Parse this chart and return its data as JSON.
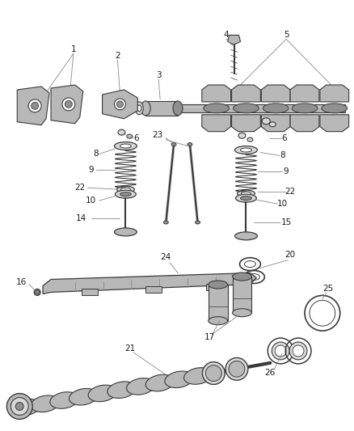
{
  "bg_color": "#ffffff",
  "line_color": "#3a3a3a",
  "fill_light": "#d8d8d8",
  "fill_mid": "#b8b8b8",
  "fill_dark": "#909090",
  "label_color": "#1a1a1a",
  "leader_color": "#888888",
  "fs": 7.5,
  "figsize": [
    4.39,
    5.33
  ],
  "dpi": 100
}
